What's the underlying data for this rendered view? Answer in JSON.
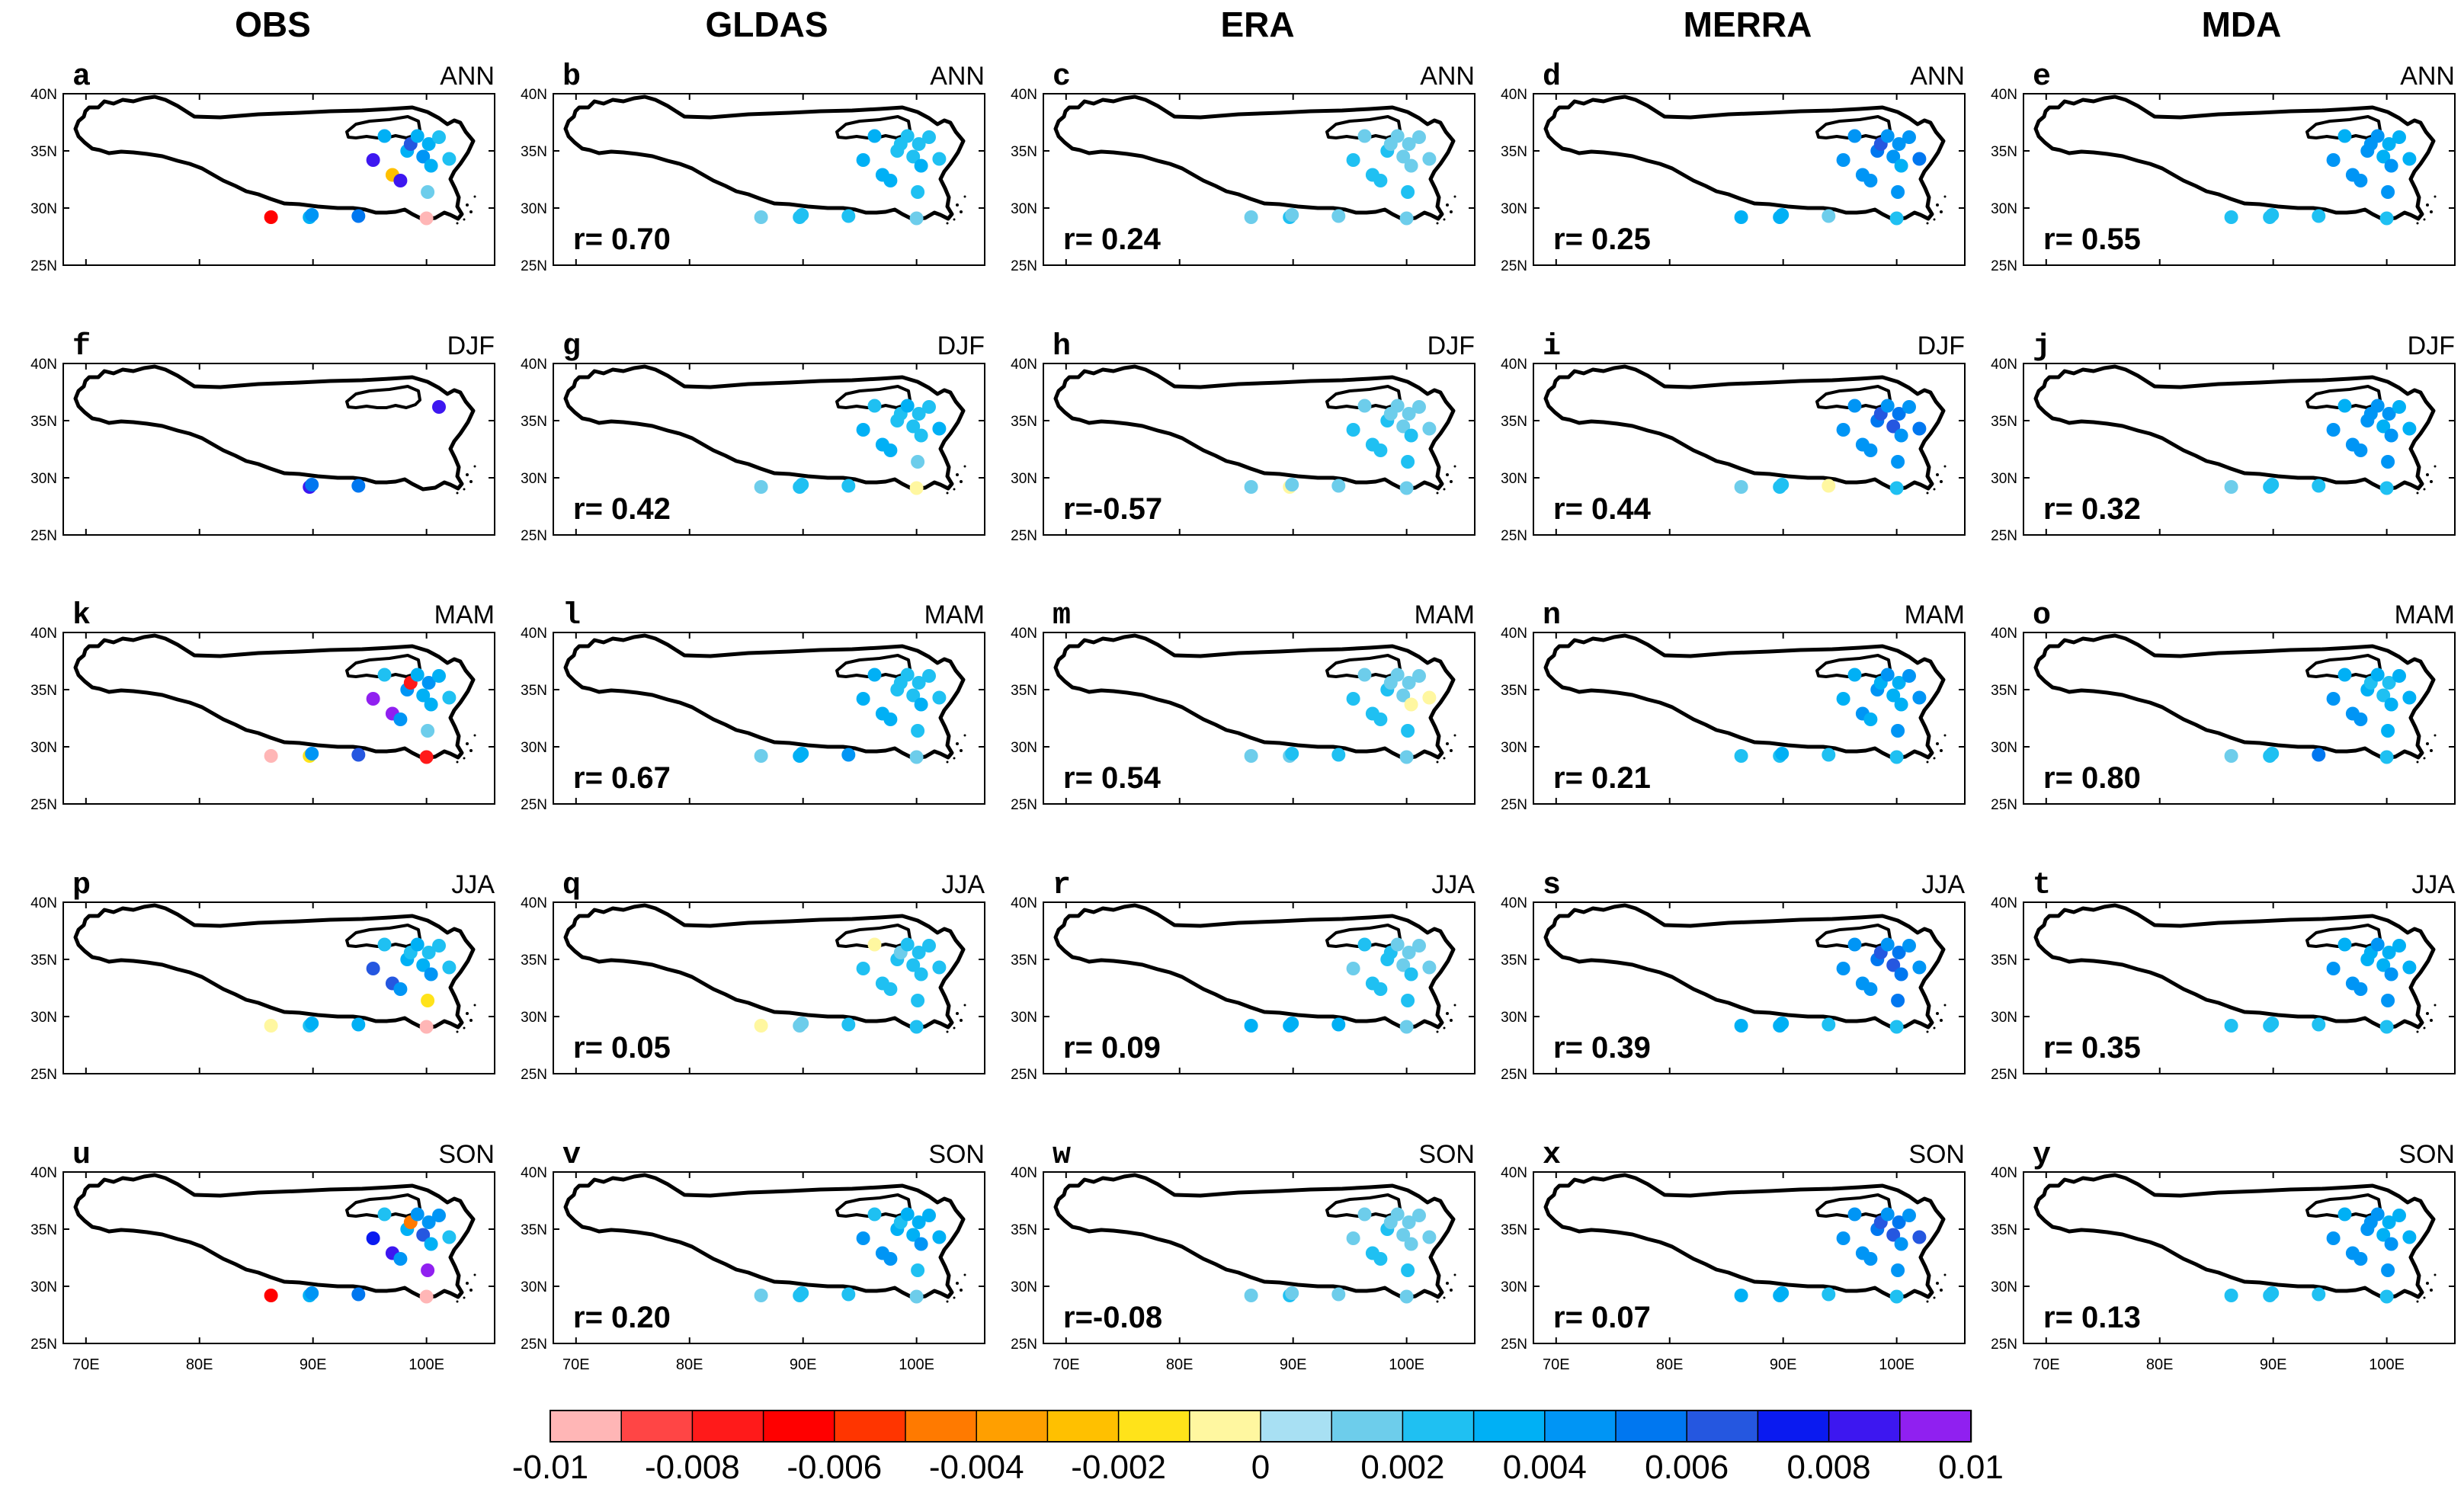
{
  "columns": [
    "OBS",
    "GLDAS",
    "ERA",
    "MERRA",
    "MDA"
  ],
  "seasons": [
    "ANN",
    "DJF",
    "MAM",
    "JJA",
    "SON"
  ],
  "panel_letters": [
    "a",
    "b",
    "c",
    "d",
    "e",
    "f",
    "g",
    "h",
    "i",
    "j",
    "k",
    "l",
    "m",
    "n",
    "o",
    "p",
    "q",
    "r",
    "s",
    "t",
    "u",
    "v",
    "w",
    "x",
    "y"
  ],
  "r_values": [
    [
      null,
      "r= 0.70",
      "r= 0.24",
      "r= 0.25",
      "r= 0.55"
    ],
    [
      null,
      "r= 0.42",
      "r=-0.57",
      "r= 0.44",
      "r= 0.32"
    ],
    [
      null,
      "r= 0.67",
      "r= 0.54",
      "r= 0.21",
      "r= 0.80"
    ],
    [
      null,
      "r= 0.05",
      "r= 0.09",
      "r= 0.39",
      "r= 0.35"
    ],
    [
      null,
      "r= 0.20",
      "r=-0.08",
      "r= 0.07",
      "r= 0.13"
    ]
  ],
  "y_ticks": [
    "40N",
    "35N",
    "30N",
    "25N"
  ],
  "x_ticks": [
    "70E",
    "80E",
    "90E",
    "100E"
  ],
  "colorbar": {
    "colors": [
      "#FFB6B6",
      "#FF4545",
      "#FF1A1A",
      "#FF0000",
      "#FF3500",
      "#FF7A00",
      "#FF9F00",
      "#FFC000",
      "#FFE31A",
      "#FFF7A0",
      "#A8E0F3",
      "#6DCDEB",
      "#1FC0F2",
      "#00B0F5",
      "#0095F5",
      "#0077F0",
      "#2557E0",
      "#0A1AF0",
      "#3D17F0",
      "#9020F0"
    ],
    "labels": [
      "-0.01",
      "-0.008",
      "-0.006",
      "-0.004",
      "-0.002",
      "0",
      "0.002",
      "0.004",
      "0.006",
      "0.008",
      "0.01"
    ]
  },
  "chart_data": {
    "type": "scatter",
    "title": "",
    "description_axes": {
      "x_range": [
        68,
        106
      ],
      "y_range": [
        25,
        40
      ],
      "x_unit": "degrees E",
      "y_unit": "degrees N"
    },
    "stations": [
      {
        "lon": 86.3,
        "lat": 29.2
      },
      {
        "lon": 89.7,
        "lat": 29.2
      },
      {
        "lon": 89.9,
        "lat": 29.4
      },
      {
        "lon": 94.0,
        "lat": 29.3
      },
      {
        "lon": 95.3,
        "lat": 34.2
      },
      {
        "lon": 96.3,
        "lat": 36.3
      },
      {
        "lon": 97.0,
        "lat": 32.9
      },
      {
        "lon": 97.7,
        "lat": 32.4
      },
      {
        "lon": 98.3,
        "lat": 35.0
      },
      {
        "lon": 98.6,
        "lat": 35.6
      },
      {
        "lon": 99.2,
        "lat": 36.3
      },
      {
        "lon": 99.7,
        "lat": 34.5
      },
      {
        "lon": 100.2,
        "lat": 35.6
      },
      {
        "lon": 100.4,
        "lat": 33.7
      },
      {
        "lon": 100.1,
        "lat": 31.4
      },
      {
        "lon": 100.0,
        "lat": 29.1
      },
      {
        "lon": 101.1,
        "lat": 36.2
      },
      {
        "lon": 102.0,
        "lat": 34.3
      }
    ],
    "panels": [
      {
        "model": "OBS",
        "season": "ANN",
        "station_values": [
          -0.007,
          0.003,
          0.004,
          0.005,
          0.008,
          0.003,
          -0.003,
          0.008,
          0.003,
          0.006,
          0.003,
          0.004,
          0.003,
          0.003,
          0.001,
          -0.01,
          0.002,
          0.002
        ]
      },
      {
        "model": "GLDAS",
        "season": "ANN",
        "station_values": [
          0.001,
          0.002,
          0.002,
          0.002,
          0.003,
          0.003,
          0.003,
          0.003,
          0.002,
          0.002,
          0.002,
          0.002,
          0.002,
          0.003,
          0.002,
          0.001,
          0.002,
          0.002
        ]
      },
      {
        "model": "ERA",
        "season": "ANN",
        "station_values": [
          0.001,
          0.002,
          0.001,
          0.001,
          0.002,
          0.001,
          0.002,
          0.002,
          0.002,
          0.001,
          0.001,
          0.001,
          0.001,
          0.001,
          0.002,
          0.001,
          0.001,
          0.001
        ]
      },
      {
        "model": "MERRA",
        "season": "ANN",
        "station_values": [
          0.003,
          0.003,
          0.003,
          0.001,
          0.004,
          0.004,
          0.004,
          0.004,
          0.005,
          0.006,
          0.004,
          0.004,
          0.004,
          0.003,
          0.004,
          0.002,
          0.004,
          0.005
        ]
      },
      {
        "model": "MDA",
        "season": "ANN",
        "station_values": [
          0.002,
          0.002,
          0.002,
          0.002,
          0.004,
          0.003,
          0.004,
          0.004,
          0.004,
          0.004,
          0.004,
          0.003,
          0.003,
          0.004,
          0.004,
          0.002,
          0.003,
          0.003
        ]
      },
      {
        "model": "OBS",
        "season": "DJF",
        "station_values": [
          null,
          0.008,
          0.005,
          0.005,
          null,
          null,
          null,
          null,
          null,
          null,
          null,
          null,
          null,
          null,
          null,
          null,
          0.008,
          null
        ]
      },
      {
        "model": "GLDAS",
        "season": "DJF",
        "station_values": [
          0.001,
          0.002,
          0.002,
          0.002,
          0.003,
          0.002,
          0.003,
          0.003,
          0.002,
          0.002,
          0.003,
          0.002,
          0.002,
          0.002,
          0.001,
          -0.001,
          0.002,
          0.003
        ]
      },
      {
        "model": "ERA",
        "season": "DJF",
        "station_values": [
          0.001,
          -0.001,
          0.001,
          0.001,
          0.002,
          0.001,
          0.002,
          0.002,
          0.002,
          0.001,
          0.001,
          0.001,
          0.001,
          0.002,
          0.002,
          0.001,
          0.001,
          0.001
        ]
      },
      {
        "model": "MERRA",
        "season": "DJF",
        "station_values": [
          0.001,
          0.002,
          0.002,
          -0.001,
          0.004,
          0.004,
          0.004,
          0.004,
          0.005,
          0.006,
          0.004,
          0.006,
          0.005,
          0.004,
          0.004,
          0.002,
          0.004,
          0.005
        ]
      },
      {
        "model": "MDA",
        "season": "DJF",
        "station_values": [
          0.001,
          0.002,
          0.002,
          0.002,
          0.004,
          0.003,
          0.004,
          0.004,
          0.004,
          0.004,
          0.004,
          0.003,
          0.004,
          0.004,
          0.004,
          0.002,
          0.003,
          0.003
        ]
      },
      {
        "model": "OBS",
        "season": "MAM",
        "station_values": [
          -0.01,
          -0.002,
          0.004,
          0.006,
          0.009,
          0.002,
          0.009,
          0.004,
          0.004,
          -0.008,
          0.003,
          0.003,
          0.004,
          0.003,
          0.001,
          -0.008,
          0.003,
          0.002
        ]
      },
      {
        "model": "GLDAS",
        "season": "MAM",
        "station_values": [
          0.001,
          0.003,
          0.003,
          0.004,
          0.003,
          0.003,
          0.003,
          0.003,
          0.002,
          0.002,
          0.002,
          0.002,
          0.002,
          0.003,
          0.002,
          0.001,
          0.002,
          0.002
        ]
      },
      {
        "model": "ERA",
        "season": "MAM",
        "station_values": [
          0.001,
          0.001,
          0.002,
          0.002,
          0.002,
          0.001,
          0.002,
          0.002,
          0.002,
          0.001,
          0.001,
          0.001,
          0.001,
          -0.001,
          0.002,
          0.001,
          0.001,
          -0.001
        ]
      },
      {
        "model": "MERRA",
        "season": "MAM",
        "station_values": [
          0.002,
          0.002,
          0.003,
          0.002,
          0.003,
          0.003,
          0.004,
          0.003,
          0.004,
          0.003,
          0.004,
          0.003,
          0.003,
          0.003,
          0.004,
          0.002,
          0.004,
          0.004
        ]
      },
      {
        "model": "MDA",
        "season": "MAM",
        "station_values": [
          0.001,
          0.002,
          0.002,
          0.005,
          0.004,
          0.003,
          0.004,
          0.004,
          0.003,
          0.002,
          0.003,
          0.002,
          0.002,
          0.003,
          0.003,
          0.002,
          0.003,
          0.003
        ]
      },
      {
        "model": "OBS",
        "season": "JJA",
        "station_values": [
          -0.001,
          0.002,
          0.003,
          0.003,
          0.006,
          0.002,
          0.006,
          0.004,
          0.003,
          0.002,
          0.003,
          0.003,
          0.002,
          0.004,
          -0.002,
          -0.01,
          0.002,
          0.002
        ]
      },
      {
        "model": "GLDAS",
        "season": "JJA",
        "station_values": [
          -0.001,
          0.001,
          0.001,
          0.002,
          0.002,
          -0.001,
          0.002,
          0.002,
          0.002,
          0.001,
          0.002,
          0.002,
          0.002,
          0.002,
          0.002,
          0.002,
          0.002,
          0.002
        ]
      },
      {
        "model": "ERA",
        "season": "JJA",
        "station_values": [
          0.003,
          0.003,
          0.003,
          0.003,
          0.001,
          0.002,
          0.002,
          0.002,
          0.002,
          0.002,
          0.001,
          0.001,
          0.001,
          0.002,
          0.002,
          0.001,
          0.001,
          0.001
        ]
      },
      {
        "model": "MERRA",
        "season": "JJA",
        "station_values": [
          0.003,
          0.003,
          0.003,
          0.002,
          0.004,
          0.004,
          0.004,
          0.004,
          0.005,
          0.006,
          0.004,
          0.006,
          0.005,
          0.005,
          0.005,
          0.002,
          0.004,
          0.004
        ]
      },
      {
        "model": "MDA",
        "season": "JJA",
        "station_values": [
          0.002,
          0.002,
          0.002,
          0.002,
          0.004,
          0.003,
          0.004,
          0.004,
          0.003,
          0.003,
          0.004,
          0.003,
          0.003,
          0.004,
          0.004,
          0.002,
          0.003,
          0.003
        ]
      },
      {
        "model": "OBS",
        "season": "SON",
        "station_values": [
          -0.007,
          0.003,
          0.004,
          0.005,
          0.007,
          0.002,
          0.008,
          0.004,
          0.003,
          -0.005,
          0.004,
          0.006,
          0.004,
          0.003,
          0.009,
          -0.01,
          0.004,
          0.002
        ]
      },
      {
        "model": "GLDAS",
        "season": "SON",
        "station_values": [
          0.001,
          0.002,
          0.002,
          0.002,
          0.004,
          0.002,
          0.004,
          0.004,
          0.003,
          0.002,
          0.003,
          0.003,
          0.003,
          0.004,
          0.002,
          0.001,
          0.003,
          0.003
        ]
      },
      {
        "model": "ERA",
        "season": "SON",
        "station_values": [
          0.001,
          0.002,
          0.001,
          0.001,
          0.001,
          0.001,
          0.002,
          0.002,
          0.002,
          0.001,
          0.001,
          0.001,
          0.001,
          0.001,
          0.002,
          0.001,
          0.001,
          0.001
        ]
      },
      {
        "model": "MERRA",
        "season": "SON",
        "station_values": [
          0.003,
          0.003,
          0.003,
          0.002,
          0.004,
          0.004,
          0.004,
          0.004,
          0.005,
          0.006,
          0.004,
          0.006,
          0.005,
          0.004,
          0.004,
          0.002,
          0.004,
          0.006
        ]
      },
      {
        "model": "MDA",
        "season": "SON",
        "station_values": [
          0.002,
          0.002,
          0.002,
          0.002,
          0.004,
          0.003,
          0.004,
          0.004,
          0.004,
          0.004,
          0.004,
          0.003,
          0.003,
          0.004,
          0.004,
          0.002,
          0.003,
          0.003
        ]
      }
    ]
  }
}
